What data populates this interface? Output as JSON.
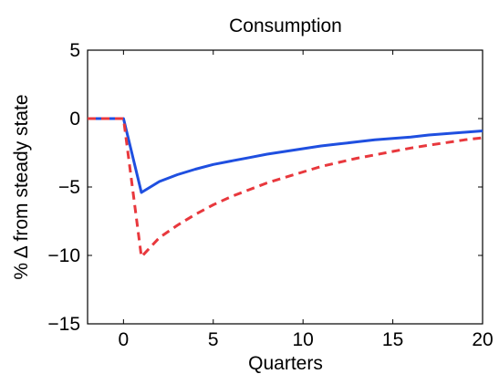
{
  "chart_data": {
    "type": "line",
    "title": "Consumption",
    "xlabel": "Quarters",
    "ylabel": "% Δ from steady state",
    "xlim": [
      -2,
      20
    ],
    "ylim": [
      -15,
      5
    ],
    "xticks": [
      0,
      5,
      10,
      15,
      20
    ],
    "xtick_labels": [
      "0",
      "5",
      "10",
      "15",
      "20"
    ],
    "yticks": [
      -15,
      -10,
      -5,
      0,
      5
    ],
    "ytick_labels": [
      "−15",
      "−10",
      "−5",
      "0",
      "5"
    ],
    "grid": false,
    "legend": "none",
    "series": [
      {
        "style": "solid",
        "color": "#1f4fe0",
        "x": [
          -2,
          -1,
          0,
          1,
          2,
          3,
          4,
          5,
          6,
          7,
          8,
          9,
          10,
          11,
          12,
          13,
          14,
          15,
          16,
          17,
          18,
          19,
          20
        ],
        "y": [
          0,
          0,
          0,
          -5.4,
          -4.6,
          -4.1,
          -3.7,
          -3.35,
          -3.1,
          -2.85,
          -2.6,
          -2.4,
          -2.2,
          -2.0,
          -1.85,
          -1.7,
          -1.55,
          -1.45,
          -1.35,
          -1.2,
          -1.1,
          -1.0,
          -0.9
        ]
      },
      {
        "style": "dashed",
        "color": "#e8383d",
        "x": [
          -2,
          -1,
          0,
          1,
          2,
          3,
          4,
          5,
          6,
          7,
          8,
          9,
          10,
          11,
          12,
          13,
          14,
          15,
          16,
          17,
          18,
          19,
          20
        ],
        "y": [
          0,
          0,
          0,
          -10.1,
          -8.7,
          -7.8,
          -7.0,
          -6.3,
          -5.7,
          -5.2,
          -4.7,
          -4.3,
          -3.9,
          -3.5,
          -3.2,
          -2.9,
          -2.65,
          -2.4,
          -2.15,
          -1.95,
          -1.75,
          -1.55,
          -1.4
        ]
      }
    ]
  }
}
